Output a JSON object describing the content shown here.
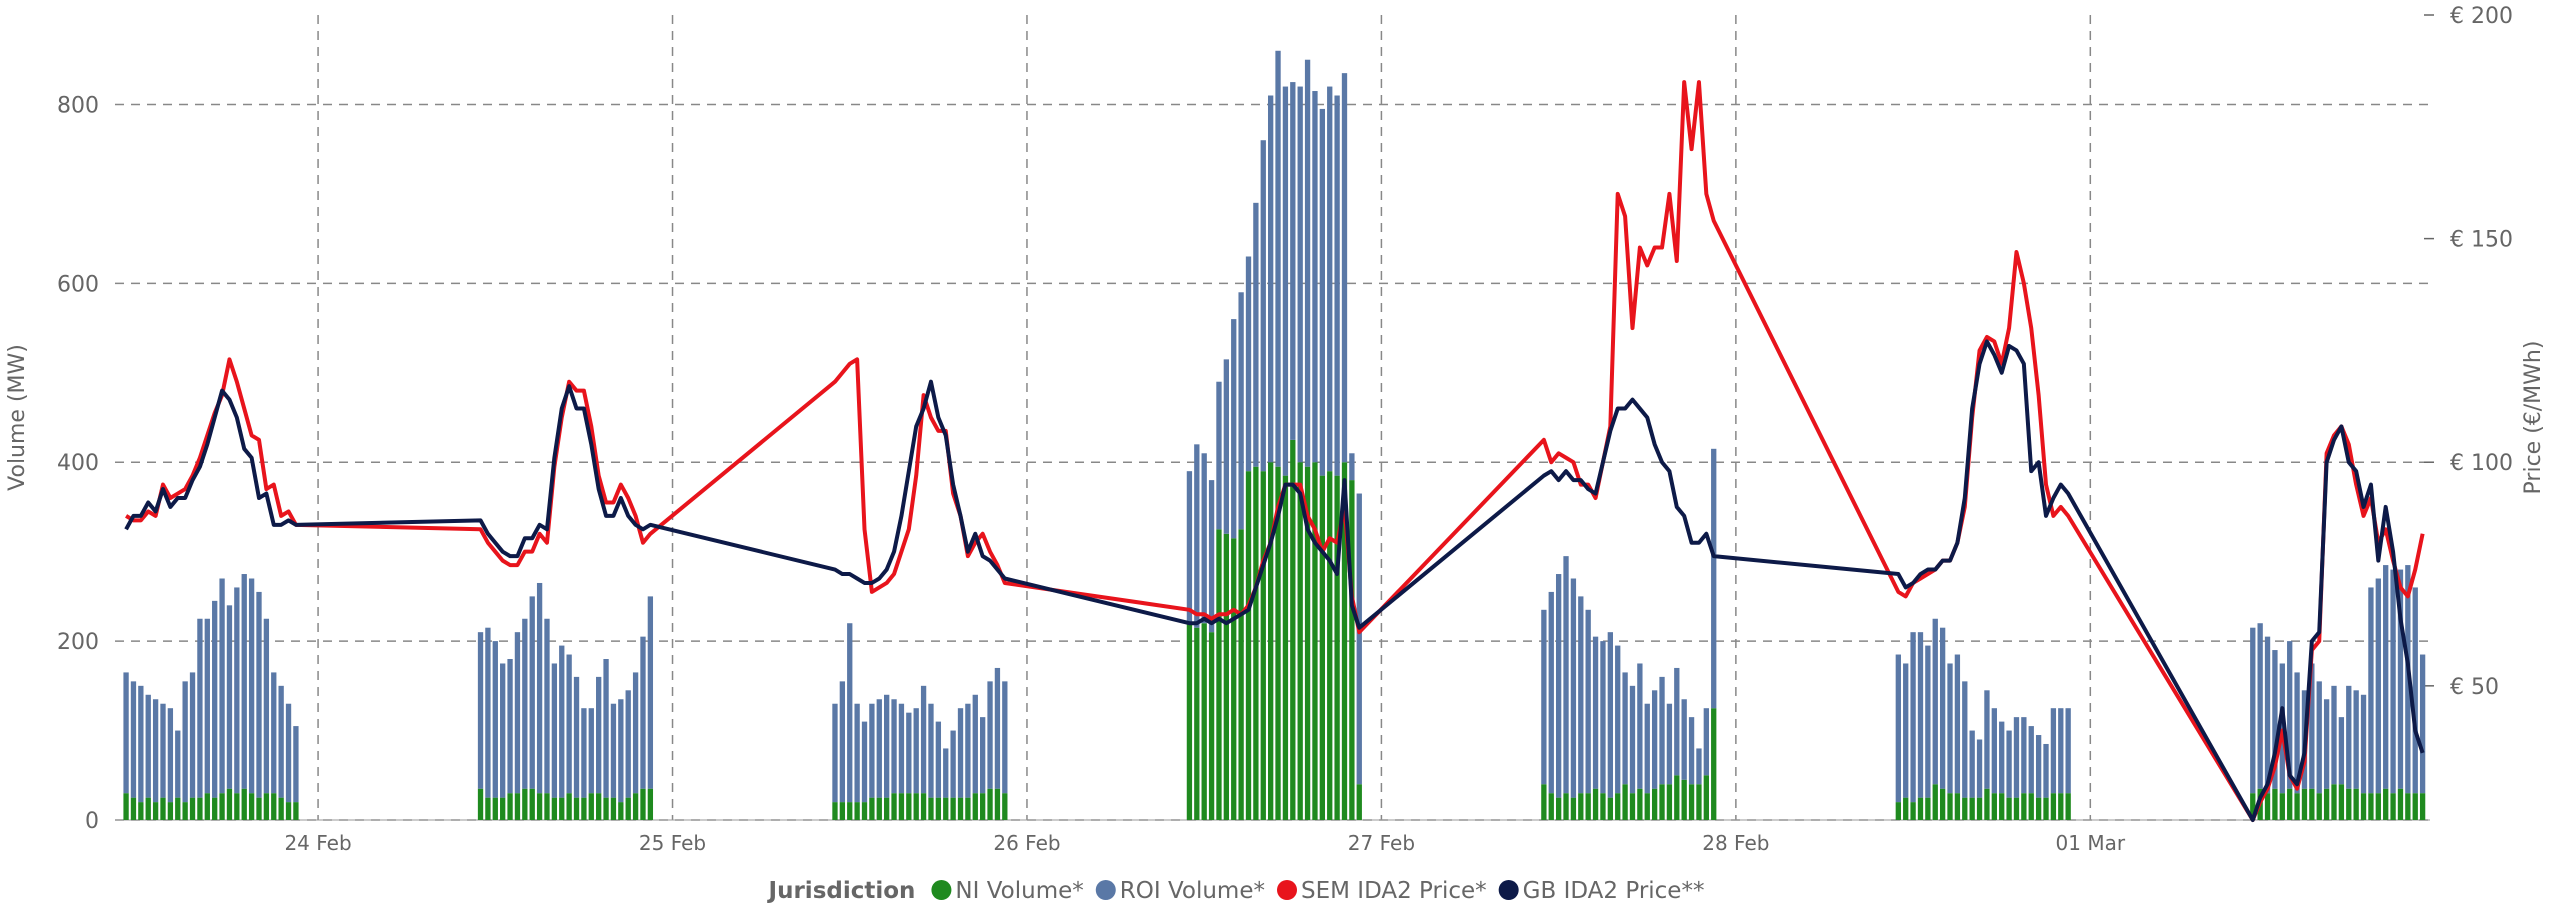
{
  "chart_data": {
    "type": "combo",
    "y_label": "Volume (MW)",
    "y2_label": "Price (€/MWh)",
    "legend_title": "Jurisdiction",
    "legend": "bottom",
    "grid": true,
    "xlim": [
      -13.75,
      143
    ],
    "xticks": [
      {
        "value": 0,
        "label": "24 Feb"
      },
      {
        "value": 24,
        "label": "25 Feb"
      },
      {
        "value": 48,
        "label": "26 Feb"
      },
      {
        "value": 72,
        "label": "27 Feb"
      },
      {
        "value": 96,
        "label": "28 Feb"
      },
      {
        "value": 120,
        "label": "01 Mar"
      }
    ],
    "ylim": [
      0,
      900
    ],
    "yticks": [
      0,
      200,
      400,
      600,
      800
    ],
    "y2lim": [
      20,
      200
    ],
    "y2ticks": [
      {
        "value": 50,
        "label": "€ 50"
      },
      {
        "value": 100,
        "label": "€ 100"
      },
      {
        "value": 150,
        "label": "€ 150"
      },
      {
        "value": 200,
        "label": "€ 200"
      }
    ],
    "x": [
      -13,
      -12.5,
      -12,
      -11.5,
      -11,
      -10.5,
      -10,
      -9.5,
      -9,
      -8.5,
      -8,
      -7.5,
      -7,
      -6.5,
      -6,
      -5.5,
      -5,
      -4.5,
      -4,
      -3.5,
      -3,
      -2.5,
      -2,
      -1.5,
      11,
      11.5,
      12,
      12.5,
      13,
      13.5,
      14,
      14.5,
      15,
      15.5,
      16,
      16.5,
      17,
      17.5,
      18,
      18.5,
      19,
      19.5,
      20,
      20.5,
      21,
      21.5,
      22,
      22.5,
      35,
      35.5,
      36,
      36.5,
      37,
      37.5,
      38,
      38.5,
      39,
      39.5,
      40,
      40.5,
      41,
      41.5,
      42,
      42.5,
      43,
      43.5,
      44,
      44.5,
      45,
      45.5,
      46,
      46.5,
      59,
      59.5,
      60,
      60.5,
      61,
      61.5,
      62,
      62.5,
      63,
      63.5,
      64,
      64.5,
      65,
      65.5,
      66,
      66.5,
      67,
      67.5,
      68,
      68.5,
      69,
      69.5,
      70,
      70.5,
      83,
      83.5,
      84,
      84.5,
      85,
      85.5,
      86,
      86.5,
      87,
      87.5,
      88,
      88.5,
      89,
      89.5,
      90,
      90.5,
      91,
      91.5,
      92,
      92.5,
      93,
      93.5,
      94,
      94.5,
      107,
      107.5,
      108,
      108.5,
      109,
      109.5,
      110,
      110.5,
      111,
      111.5,
      112,
      112.5,
      113,
      113.5,
      114,
      114.5,
      115,
      115.5,
      116,
      116.5,
      117,
      117.5,
      118,
      118.5,
      131,
      131.5,
      132,
      132.5,
      133,
      133.5,
      134,
      134.5,
      135,
      135.5,
      136,
      136.5,
      137,
      137.5,
      138,
      138.5,
      139,
      139.5,
      140,
      140.5,
      141,
      141.5,
      142,
      142.5
    ],
    "series": [
      {
        "name": "NI Volume*",
        "type": "bar",
        "color": "#1f8a1f",
        "values": [
          30,
          25,
          20,
          25,
          20,
          25,
          20,
          25,
          20,
          25,
          25,
          30,
          25,
          30,
          35,
          30,
          35,
          30,
          25,
          30,
          30,
          25,
          20,
          20,
          35,
          25,
          25,
          25,
          30,
          30,
          35,
          35,
          30,
          30,
          25,
          25,
          30,
          25,
          25,
          30,
          30,
          25,
          25,
          20,
          25,
          30,
          35,
          35,
          20,
          20,
          20,
          20,
          20,
          25,
          25,
          25,
          30,
          30,
          30,
          30,
          30,
          25,
          25,
          25,
          25,
          25,
          25,
          30,
          30,
          35,
          35,
          30,
          220,
          215,
          220,
          210,
          325,
          320,
          315,
          325,
          390,
          395,
          390,
          400,
          395,
          385,
          425,
          400,
          395,
          400,
          385,
          390,
          385,
          400,
          380,
          40,
          40,
          30,
          25,
          30,
          25,
          30,
          30,
          35,
          30,
          25,
          30,
          40,
          30,
          35,
          30,
          35,
          40,
          40,
          50,
          45,
          40,
          40,
          50,
          125,
          20,
          25,
          20,
          25,
          25,
          40,
          35,
          30,
          30,
          25,
          25,
          25,
          35,
          30,
          30,
          25,
          25,
          30,
          30,
          25,
          25,
          30,
          30,
          30,
          30,
          35,
          30,
          35,
          30,
          35,
          30,
          35,
          35,
          30,
          35,
          40,
          40,
          35,
          35,
          30,
          30,
          30,
          35,
          30,
          35,
          30,
          30,
          30
        ]
      },
      {
        "name": "ROI Volume*",
        "type": "bar",
        "color": "#5a78a6",
        "values": [
          135,
          130,
          130,
          115,
          115,
          105,
          105,
          75,
          135,
          140,
          200,
          195,
          220,
          240,
          205,
          230,
          240,
          240,
          230,
          195,
          135,
          125,
          110,
          85,
          175,
          190,
          175,
          150,
          150,
          180,
          190,
          215,
          235,
          195,
          150,
          170,
          155,
          135,
          100,
          95,
          130,
          155,
          105,
          115,
          120,
          135,
          170,
          215,
          110,
          135,
          200,
          110,
          90,
          105,
          110,
          115,
          105,
          100,
          90,
          95,
          120,
          105,
          85,
          55,
          75,
          100,
          105,
          110,
          85,
          120,
          135,
          125,
          170,
          205,
          190,
          170,
          165,
          195,
          245,
          265,
          240,
          295,
          370,
          410,
          465,
          435,
          400,
          420,
          455,
          415,
          410,
          430,
          425,
          435,
          30,
          325,
          195,
          225,
          250,
          265,
          245,
          220,
          205,
          170,
          170,
          185,
          165,
          125,
          120,
          140,
          100,
          110,
          120,
          90,
          120,
          90,
          75,
          40,
          75,
          290,
          165,
          150,
          190,
          185,
          170,
          185,
          180,
          145,
          155,
          130,
          75,
          65,
          110,
          95,
          80,
          75,
          90,
          85,
          75,
          70,
          60,
          95,
          95,
          95,
          185,
          185,
          175,
          155,
          145,
          165,
          135,
          110,
          140,
          125,
          100,
          110,
          75,
          115,
          110,
          110,
          230,
          240,
          250,
          250,
          245,
          255,
          230,
          155
        ]
      },
      {
        "name": "SEM IDA2 Price*",
        "type": "line",
        "axis": "y2",
        "color": "#e8141c",
        "values": [
          88,
          87,
          87,
          89,
          88,
          95,
          92,
          93,
          94,
          97,
          101,
          106,
          111,
          115,
          123,
          118,
          112,
          106,
          105,
          94,
          95,
          88,
          89,
          86,
          85,
          82,
          80,
          78,
          77,
          77,
          80,
          80,
          84,
          82,
          99,
          110,
          118,
          116,
          116,
          108,
          97,
          91,
          91,
          95,
          92,
          88,
          82,
          84,
          118,
          120,
          122,
          123,
          85,
          71,
          72,
          73,
          75,
          80,
          85,
          97,
          115,
          110,
          107,
          107,
          93,
          88,
          79,
          82,
          84,
          80,
          77,
          73,
          67,
          66,
          66,
          65,
          66,
          66,
          67,
          66,
          68,
          72,
          78,
          82,
          90,
          95,
          95,
          95,
          88,
          85,
          80,
          83,
          82,
          90,
          70,
          62,
          105,
          100,
          102,
          101,
          100,
          95,
          95,
          92,
          100,
          108,
          160,
          155,
          130,
          148,
          144,
          148,
          148,
          160,
          145,
          185,
          170,
          185,
          160,
          154,
          71,
          70,
          73,
          74,
          75,
          76,
          78,
          78,
          82,
          90,
          110,
          125,
          128,
          127,
          122,
          130,
          147,
          140,
          130,
          115,
          95,
          88,
          90,
          88,
          20,
          24,
          27,
          32,
          40,
          30,
          27,
          33,
          58,
          60,
          102,
          106,
          108,
          104,
          95,
          88,
          92,
          82,
          85,
          78,
          72,
          70,
          76,
          84
        ]
      },
      {
        "name": "GB IDA2 Price**",
        "type": "line",
        "axis": "y2",
        "color": "#0d1a48",
        "values": [
          85,
          88,
          88,
          91,
          89,
          94,
          90,
          92,
          92,
          96,
          99,
          104,
          110,
          116,
          114,
          110,
          103,
          101,
          92,
          93,
          86,
          86,
          87,
          86,
          87,
          84,
          82,
          80,
          79,
          79,
          83,
          83,
          86,
          85,
          101,
          112,
          117,
          112,
          112,
          104,
          94,
          88,
          88,
          92,
          88,
          86,
          85,
          86,
          76,
          75,
          75,
          74,
          73,
          73,
          74,
          76,
          80,
          88,
          98,
          108,
          112,
          118,
          110,
          106,
          95,
          88,
          80,
          84,
          79,
          78,
          76,
          74,
          64,
          64,
          65,
          64,
          65,
          64,
          65,
          66,
          67,
          72,
          77,
          82,
          88,
          95,
          95,
          93,
          85,
          82,
          80,
          78,
          75,
          96,
          68,
          63,
          97,
          98,
          96,
          98,
          96,
          96,
          94,
          93,
          100,
          107,
          112,
          112,
          114,
          112,
          110,
          104,
          100,
          98,
          90,
          88,
          82,
          82,
          84,
          79,
          75,
          72,
          73,
          75,
          76,
          76,
          78,
          78,
          82,
          92,
          112,
          122,
          127,
          124,
          120,
          126,
          125,
          122,
          98,
          100,
          88,
          92,
          95,
          93,
          20,
          25,
          28,
          35,
          45,
          30,
          28,
          35,
          60,
          62,
          100,
          105,
          108,
          100,
          98,
          90,
          95,
          78,
          90,
          80,
          65,
          55,
          40,
          35
        ]
      }
    ]
  }
}
